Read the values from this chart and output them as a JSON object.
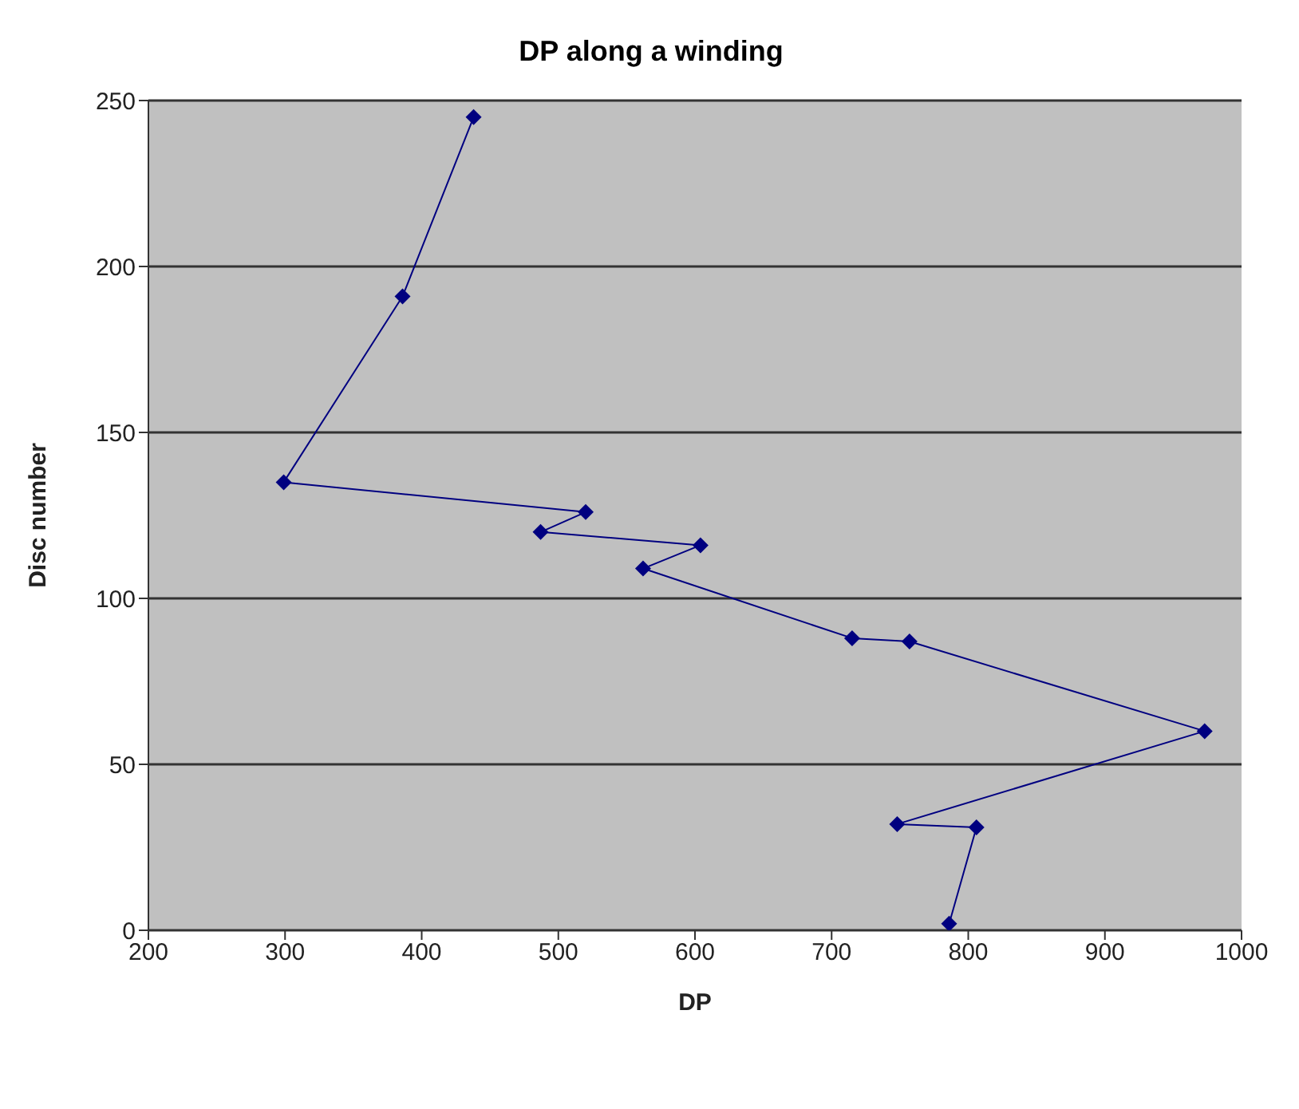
{
  "chart_data": {
    "type": "line",
    "title": "DP along a winding",
    "xlabel": "DP",
    "ylabel": "Disc number",
    "x": [
      438,
      386,
      299,
      520,
      487,
      604,
      562,
      715,
      757,
      973,
      748,
      806,
      786
    ],
    "series": [
      {
        "color": "#000080",
        "values": [
          245,
          191,
          135,
          126,
          120,
          116,
          109,
          88,
          87,
          60,
          32,
          31,
          2
        ]
      }
    ],
    "xlim": [
      200,
      1000
    ],
    "xticks": [
      200,
      300,
      400,
      500,
      600,
      700,
      800,
      900,
      1000
    ],
    "ylim": [
      0,
      250
    ],
    "yticks": [
      0,
      50,
      100,
      150,
      200,
      250
    ],
    "grid": "y",
    "legend": false,
    "marker": "diamond",
    "line_style": "solid"
  }
}
